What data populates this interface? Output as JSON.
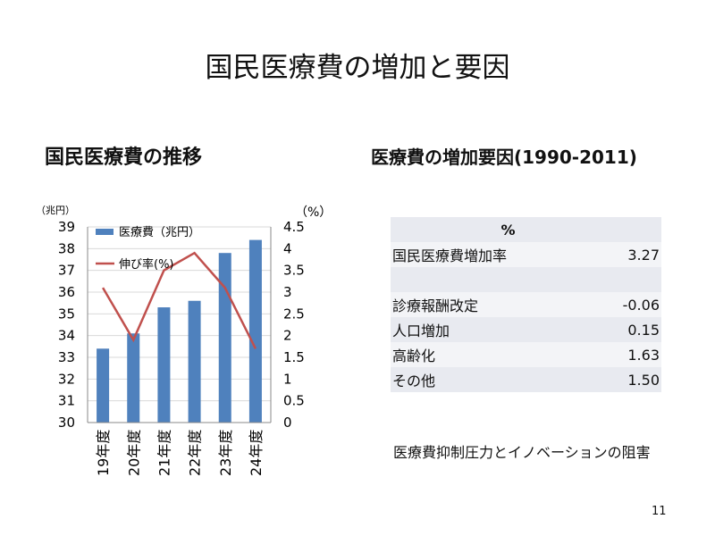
{
  "slide": {
    "title": "国民医療費の増加と要因",
    "left_subtitle": "国民医療費の推移",
    "right_subtitle": "医療費の増加要因(1990-2011)",
    "note": "医療費抑制圧力とイノベーションの阻害",
    "page_number": "11"
  },
  "colors": {
    "bar": "#4f81bd",
    "line": "#c0504d",
    "grid": "#d9d9d9",
    "table_odd": "#e8eaf0",
    "table_even": "#f3f4f7"
  },
  "chart_data": {
    "type": "bar",
    "categories": [
      "19年度",
      "20年度",
      "21年度",
      "22年度",
      "23年度",
      "24年度"
    ],
    "series": [
      {
        "name": "医療費（兆円）",
        "type": "bar",
        "axis": "left",
        "values": [
          33.4,
          34.1,
          35.3,
          35.6,
          37.8,
          38.4
        ]
      },
      {
        "name": "伸び率(%)",
        "type": "line",
        "axis": "right",
        "values": [
          3.1,
          1.9,
          3.5,
          3.9,
          3.1,
          1.7
        ]
      }
    ],
    "ylabel_left": "（兆円）",
    "ylabel_right": "（%）",
    "ylim_left": [
      30,
      39
    ],
    "ylim_right": [
      0,
      4.5
    ],
    "yticks_left": [
      "30",
      "31",
      "32",
      "33",
      "34",
      "35",
      "36",
      "37",
      "38",
      "39"
    ],
    "yticks_right": [
      "0",
      "0.5",
      "1",
      "1.5",
      "2",
      "2.5",
      "3",
      "3.5",
      "4",
      "4.5"
    ],
    "grid": true,
    "legend": "top-left"
  },
  "table": {
    "header": "%",
    "rows": [
      {
        "label": "国民医療費増加率",
        "value": "3.27"
      },
      {
        "label": "",
        "value": ""
      },
      {
        "label": "診療報酬改定",
        "value": "-0.06"
      },
      {
        "label": "人口増加",
        "value": "0.15"
      },
      {
        "label": "高齢化",
        "value": "1.63"
      },
      {
        "label": "その他",
        "value": "1.50"
      }
    ]
  }
}
